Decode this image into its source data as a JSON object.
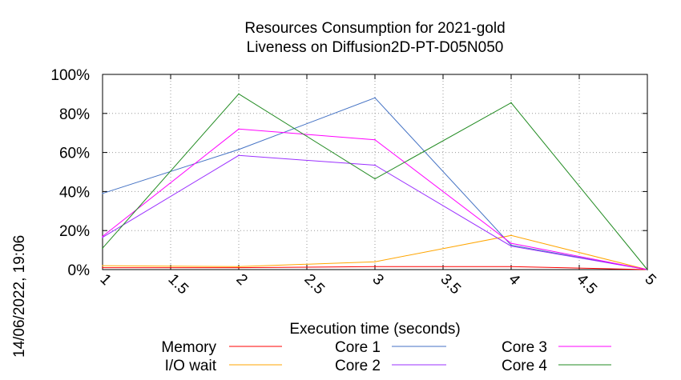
{
  "chart_data": {
    "type": "line",
    "title": "Resources Consumption for 2021-gold",
    "subtitle": "Liveness on Diffusion2D-PT-D05N050",
    "xlabel": "Execution time (seconds)",
    "ylabel": "",
    "side_label": "14/06/2022, 19:06",
    "xlim": [
      1,
      5
    ],
    "ylim": [
      0,
      100
    ],
    "x_ticks": [
      "1",
      "1.5",
      "2",
      "2.5",
      "3",
      "3.5",
      "4",
      "4.5",
      "5"
    ],
    "y_ticks": [
      "0%",
      "20%",
      "40%",
      "60%",
      "80%",
      "100%"
    ],
    "grid": true,
    "legend_position": "bottom",
    "x": [
      1,
      2,
      3,
      4,
      5
    ],
    "series": [
      {
        "name": "Memory",
        "color": "#ff0000",
        "values": [
          1,
          1,
          1.5,
          1.5,
          0
        ]
      },
      {
        "name": "I/O wait",
        "color": "#ffa500",
        "values": [
          2,
          1.5,
          4,
          17.5,
          0
        ]
      },
      {
        "name": "Core 1",
        "color": "#4472c4",
        "values": [
          39,
          61.5,
          88,
          12.5,
          0
        ]
      },
      {
        "name": "Core 2",
        "color": "#9b30ff",
        "values": [
          16.5,
          58.5,
          53.5,
          12,
          0
        ]
      },
      {
        "name": "Core 3",
        "color": "#ff00ff",
        "values": [
          17,
          72,
          66.5,
          13.5,
          0
        ]
      },
      {
        "name": "Core 4",
        "color": "#228b22",
        "values": [
          11,
          90,
          46.5,
          85.5,
          0
        ]
      }
    ]
  }
}
